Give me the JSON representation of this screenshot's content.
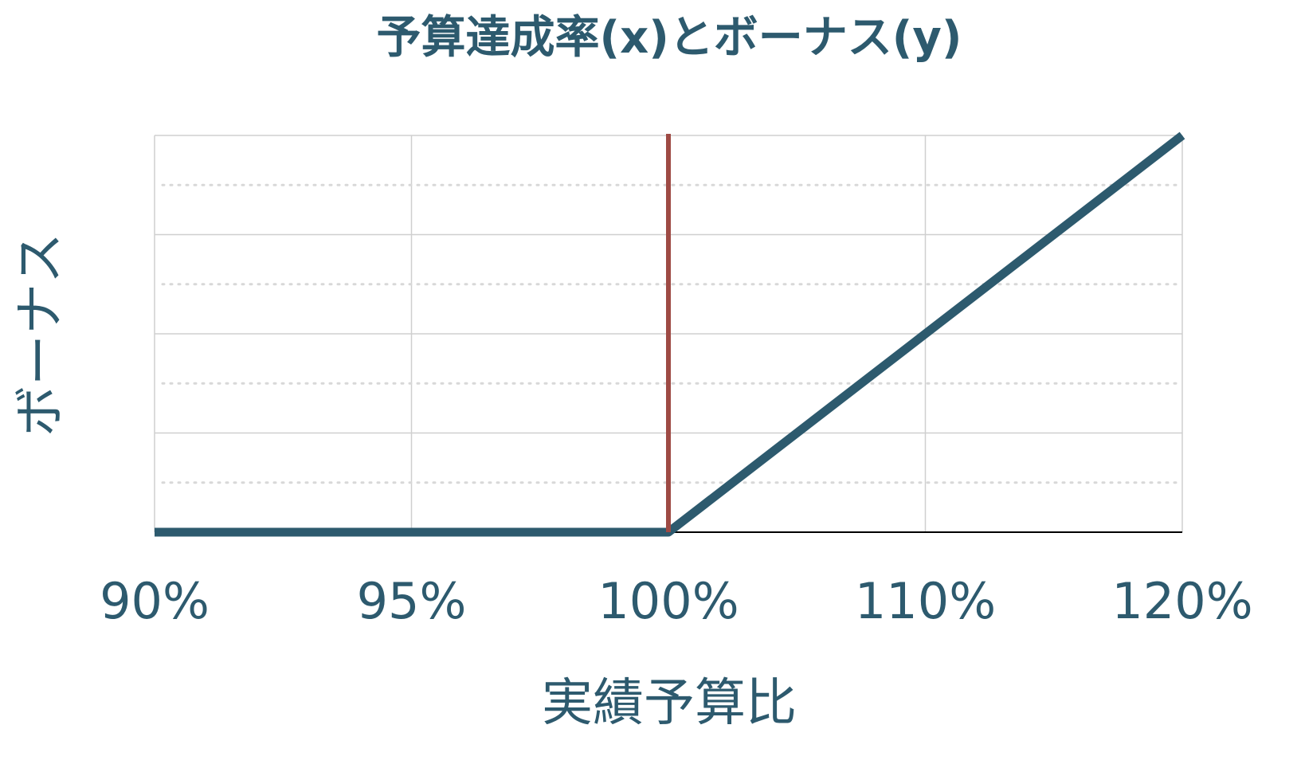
{
  "chart_data": {
    "type": "line",
    "title": "予算達成率(x)とボーナス(y)",
    "xlabel": "実績予算比",
    "ylabel": "ボーナス",
    "categories": [
      "90%",
      "95%",
      "100%",
      "110%",
      "120%"
    ],
    "x_tick_labels": [
      "90%",
      "95%",
      "100%",
      "110%",
      "120%"
    ],
    "y_tick_labels": [],
    "series": [
      {
        "values": [
          0,
          0,
          0,
          1,
          2
        ]
      }
    ],
    "reference_line": {
      "x_category": "100%"
    },
    "ylim": [
      0,
      2
    ],
    "grid": true,
    "minor_grid": true,
    "colors": {
      "title": "#2d5a6e",
      "axis_label": "#2d5a6e",
      "tick_label": "#2d5a6e",
      "series": "#2d5a6e",
      "reference_line": "#9e4a44",
      "grid": "#cfcfcf",
      "minor_grid": "#d8d8d8",
      "baseline": "#000000"
    }
  }
}
